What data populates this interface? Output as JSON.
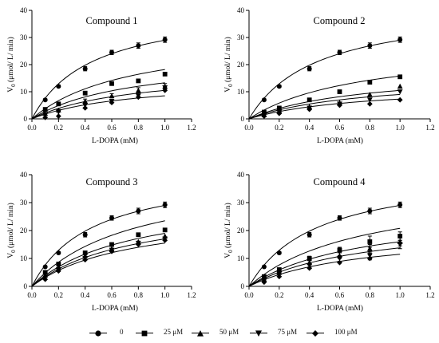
{
  "chart_data": [
    {
      "type": "scatter",
      "title": "Compound 1",
      "xlabel": "L-DOPA (mM)",
      "ylabel": "V0 (μmol/ L/ min)",
      "xlim": [
        0,
        1.2
      ],
      "ylim": [
        0,
        40
      ],
      "x_ticks": [
        "0.0",
        "0.2",
        "0.4",
        "0.6",
        "0.8",
        "1.0",
        "1.2"
      ],
      "y_ticks": [
        "0",
        "10",
        "20",
        "30",
        "40"
      ],
      "x": [
        0.1,
        0.2,
        0.4,
        0.6,
        0.8,
        1.0
      ],
      "series": [
        {
          "name": "0",
          "marker": "circle",
          "values": [
            7.0,
            12.0,
            18.5,
            24.5,
            27.0,
            29.2
          ],
          "errors": [
            0.3,
            0.4,
            0.8,
            0.8,
            1.0,
            1.0
          ],
          "fit_at_1": 29.0
        },
        {
          "name": "25 μM",
          "marker": "square",
          "values": [
            3.5,
            5.5,
            9.5,
            13.0,
            14.0,
            16.5
          ],
          "fit_at_1": 18.2
        },
        {
          "name": "50 μM",
          "marker": "triangle-up",
          "values": [
            2.0,
            3.2,
            6.5,
            8.5,
            10.5,
            12.0
          ],
          "errors": [
            0,
            0.3,
            0.8,
            0.8,
            1.0,
            1.0
          ],
          "fit_at_1": 13.3
        },
        {
          "name": "75 μM",
          "marker": "triangle-down",
          "values": [
            1.5,
            2.5,
            5.0,
            6.5,
            8.5,
            11.5
          ],
          "fit_at_1": 10.5
        },
        {
          "name": "100 μM",
          "marker": "diamond",
          "values": [
            0.5,
            1.0,
            4.0,
            6.0,
            8.0,
            10.5
          ],
          "fit_at_1": 8.5
        }
      ]
    },
    {
      "type": "scatter",
      "title": "Compound 2",
      "xlabel": "L-DOPA (mM)",
      "ylabel": "V0 (μmol/ L/ min)",
      "xlim": [
        0,
        1.2
      ],
      "ylim": [
        0,
        40
      ],
      "x_ticks": [
        "0.0",
        "0.2",
        "0.4",
        "0.6",
        "0.8",
        "1.0",
        "1.2"
      ],
      "y_ticks": [
        "0",
        "10",
        "20",
        "30",
        "40"
      ],
      "x": [
        0.1,
        0.2,
        0.4,
        0.6,
        0.8,
        1.0
      ],
      "series": [
        {
          "name": "0",
          "marker": "circle",
          "values": [
            7.0,
            12.0,
            18.5,
            24.5,
            27.0,
            29.2
          ],
          "errors": [
            0.3,
            0.4,
            0.8,
            0.8,
            1.0,
            1.0
          ],
          "fit_at_1": 29.0
        },
        {
          "name": "25 μM",
          "marker": "square",
          "values": [
            2.5,
            4.0,
            7.0,
            10.0,
            13.5,
            15.5
          ],
          "fit_at_1": 15.8
        },
        {
          "name": "50 μM",
          "marker": "triangle-up",
          "values": [
            1.5,
            3.0,
            4.5,
            6.0,
            9.0,
            12.0
          ],
          "fit_at_1": 10.5
        },
        {
          "name": "75 μM",
          "marker": "triangle-down",
          "values": [
            1.2,
            2.5,
            4.0,
            5.5,
            7.0,
            10.0
          ],
          "fit_at_1": 9.0
        },
        {
          "name": "100 μM",
          "marker": "diamond",
          "values": [
            1.0,
            2.0,
            3.5,
            5.0,
            5.5,
            7.0
          ],
          "fit_at_1": 7.3
        }
      ]
    },
    {
      "type": "scatter",
      "title": "Compound 3",
      "xlabel": "L-DOPA (mM)",
      "ylabel": "V0 (μmol/ L/ min)",
      "xlim": [
        0,
        1.2
      ],
      "ylim": [
        0,
        40
      ],
      "x_ticks": [
        "0.0",
        "0.2",
        "0.4",
        "0.6",
        "0.8",
        "1.0",
        "1.2"
      ],
      "y_ticks": [
        "0",
        "10",
        "20",
        "30",
        "40"
      ],
      "x": [
        0.1,
        0.2,
        0.4,
        0.6,
        0.8,
        1.0
      ],
      "series": [
        {
          "name": "0",
          "marker": "circle",
          "values": [
            7.0,
            12.0,
            18.5,
            24.5,
            27.0,
            29.2
          ],
          "errors": [
            0.3,
            0.4,
            0.8,
            0.8,
            1.0,
            1.0
          ],
          "fit_at_1": 29.0
        },
        {
          "name": "25 μM",
          "marker": "square",
          "values": [
            5.0,
            8.0,
            12.0,
            15.0,
            18.5,
            20.2
          ],
          "fit_at_1": 23.5
        },
        {
          "name": "50 μM",
          "marker": "triangle-up",
          "values": [
            4.0,
            7.0,
            11.0,
            13.5,
            16.0,
            18.0
          ],
          "fit_at_1": 19.0
        },
        {
          "name": "75 μM",
          "marker": "triangle-down",
          "values": [
            3.0,
            6.0,
            10.0,
            13.0,
            15.5,
            17.0
          ],
          "fit_at_1": 17.0
        },
        {
          "name": "100 μM",
          "marker": "diamond",
          "values": [
            2.5,
            5.5,
            9.5,
            12.5,
            15.0,
            16.5
          ],
          "fit_at_1": 15.5
        }
      ]
    },
    {
      "type": "scatter",
      "title": "Compound 4",
      "xlabel": "L-DOPA (mM)",
      "ylabel": "V0 (μmol/ L/ min)",
      "xlim": [
        0,
        1.2
      ],
      "ylim": [
        0,
        40
      ],
      "x_ticks": [
        "0.0",
        "0.2",
        "0.4",
        "0.6",
        "0.8",
        "1.0",
        "1.2"
      ],
      "y_ticks": [
        "0",
        "10",
        "20",
        "30",
        "40"
      ],
      "x": [
        0.1,
        0.2,
        0.4,
        0.6,
        0.8,
        1.0
      ],
      "series": [
        {
          "name": "0",
          "marker": "circle",
          "values": [
            7.0,
            12.0,
            18.5,
            24.5,
            27.0,
            29.2
          ],
          "errors": [
            0.3,
            0.4,
            0.8,
            0.8,
            1.0,
            1.0
          ],
          "fit_at_1": 29.0
        },
        {
          "name": "25 μM",
          "marker": "square",
          "values": [
            3.5,
            6.0,
            10.0,
            13.0,
            16.0,
            18.0
          ],
          "errors": [
            0,
            0.3,
            0.8,
            1.0,
            2.0,
            1.5
          ],
          "fit_at_1": 20.8
        },
        {
          "name": "50 μM",
          "marker": "triangle-up",
          "values": [
            2.5,
            5.0,
            8.5,
            11.0,
            13.5,
            16.0
          ],
          "errors": [
            0,
            0.3,
            0.8,
            1.0,
            1.5,
            1.5
          ],
          "fit_at_1": 16.0
        },
        {
          "name": "75 μM",
          "marker": "triangle-down",
          "values": [
            2.0,
            4.5,
            7.5,
            10.0,
            11.0,
            15.0
          ],
          "errors": [
            0,
            0.3,
            0.6,
            1.0,
            1.5,
            1.5
          ],
          "fit_at_1": 13.8
        },
        {
          "name": "100 μM",
          "marker": "diamond",
          "values": [
            1.5,
            3.5,
            6.5,
            8.5,
            10.0,
            15.5
          ],
          "fit_at_1": 11.5
        }
      ]
    }
  ],
  "legend": {
    "placement": "bottom",
    "items": [
      {
        "label": "0",
        "marker": "circle"
      },
      {
        "label": "25 μM",
        "marker": "square"
      },
      {
        "label": "50 μM",
        "marker": "triangle-up"
      },
      {
        "label": "75 μM",
        "marker": "triangle-down"
      },
      {
        "label": "100 μM",
        "marker": "diamond"
      }
    ]
  }
}
